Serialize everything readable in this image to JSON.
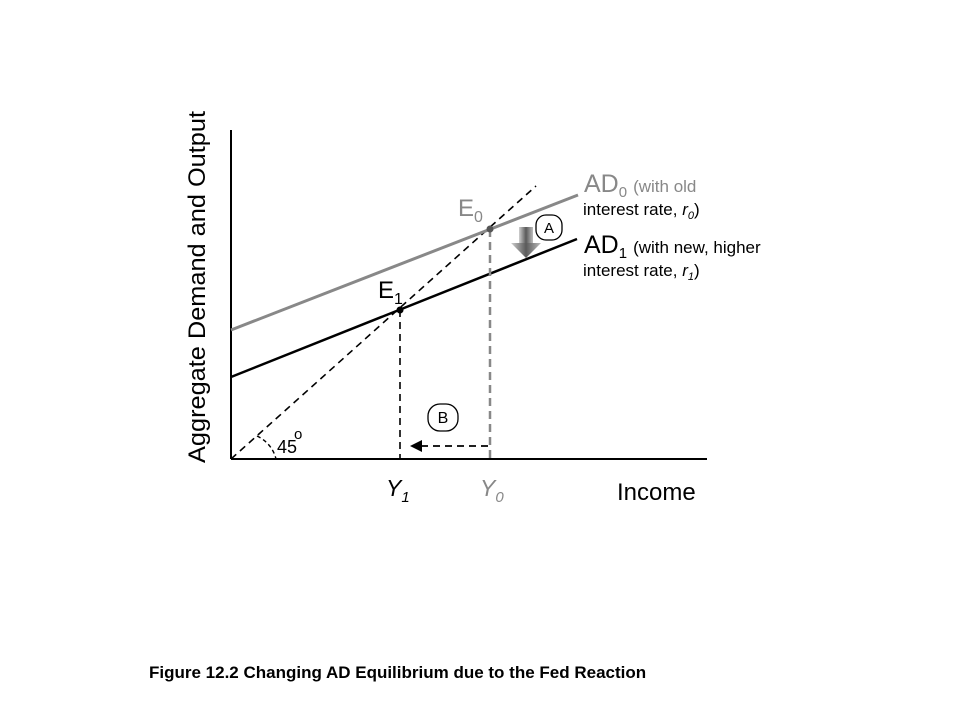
{
  "diagram": {
    "y_axis_label": "Aggregate Demand and Output",
    "x_axis_label": "Income",
    "angle_label": "45",
    "degree_symbol": "o",
    "ad0": {
      "main": "AD",
      "sub": "0",
      "desc_line1": "(with old",
      "desc_line2_prefix": "interest rate, ",
      "desc_var": "r",
      "desc_var_sub": "0",
      "desc_close": ")"
    },
    "ad1": {
      "main": "AD",
      "sub": "1",
      "desc_line1": "(with new, higher",
      "desc_line2_prefix": "interest rate, ",
      "desc_var": "r",
      "desc_var_sub": "1",
      "desc_close": ")"
    },
    "e0": {
      "main": "E",
      "sub": "0"
    },
    "e1": {
      "main": "E",
      "sub": "1"
    },
    "y0": {
      "main": "Y",
      "sub": "0"
    },
    "y1": {
      "main": "Y",
      "sub": "1"
    },
    "marker_a": "A",
    "marker_b": "B",
    "colors": {
      "ad0": "#888888",
      "ad1": "#000000",
      "guide_y0": "#888888",
      "guide_y1": "#000000"
    }
  },
  "caption": "Figure 12.2  Changing AD Equilibrium due to the Fed Reaction"
}
